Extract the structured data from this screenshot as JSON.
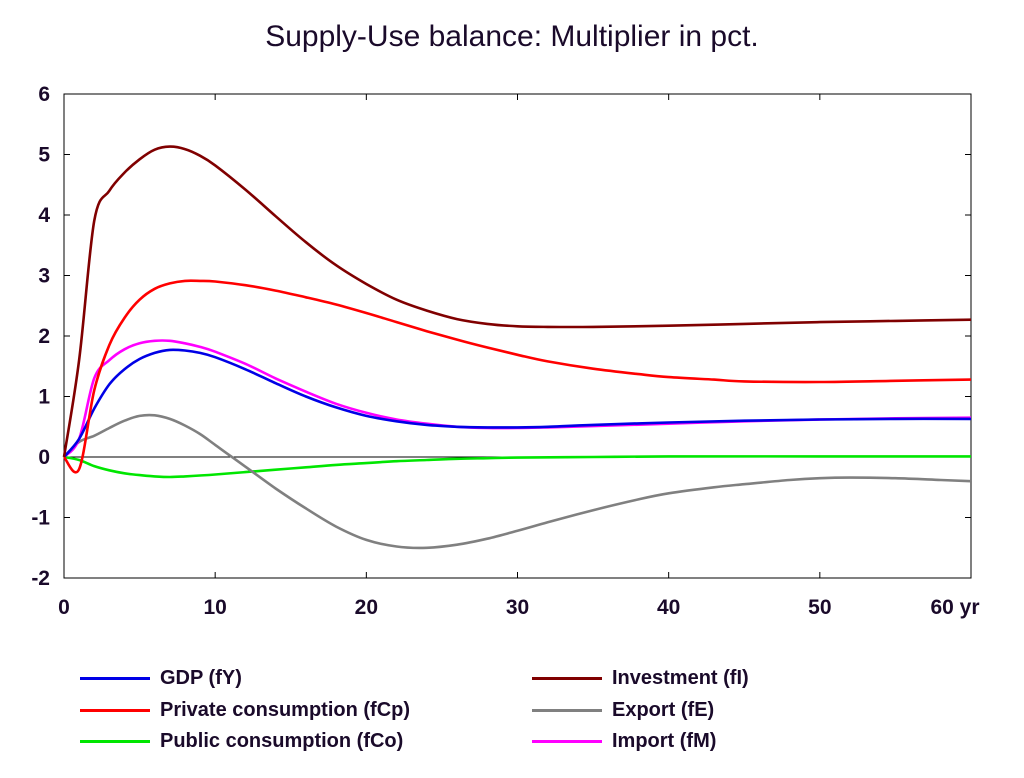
{
  "title": "Supply-Use balance: Multiplier in pct.",
  "chart_data": {
    "type": "line",
    "title": "Supply-Use balance: Multiplier in pct.",
    "xlabel": "",
    "ylabel": "",
    "xlim": [
      0,
      60
    ],
    "ylim": [
      -2,
      6
    ],
    "x_ticks": [
      "0",
      "10",
      "20",
      "30",
      "40",
      "50",
      "60 yr"
    ],
    "x_tick_values": [
      0,
      10,
      20,
      30,
      40,
      50,
      60
    ],
    "y_ticks": [
      "6",
      "5",
      "4",
      "3",
      "2",
      "1",
      "0",
      "-1",
      "-2"
    ],
    "y_tick_values": [
      6,
      5,
      4,
      3,
      2,
      1,
      0,
      -1,
      -2
    ],
    "grid": false,
    "zero_line": true,
    "legend_position": "bottom",
    "series": [
      {
        "name": "GDP (fY)",
        "color": "#0000e6",
        "x": [
          0,
          1,
          2,
          3,
          4,
          5,
          6,
          7,
          8,
          9,
          10,
          12,
          14,
          16,
          18,
          20,
          22,
          24,
          26,
          28,
          30,
          32,
          35,
          40,
          45,
          50,
          55,
          60
        ],
        "y": [
          0,
          0.3,
          0.8,
          1.2,
          1.45,
          1.62,
          1.72,
          1.77,
          1.76,
          1.72,
          1.65,
          1.45,
          1.22,
          1.0,
          0.82,
          0.68,
          0.59,
          0.53,
          0.5,
          0.49,
          0.49,
          0.5,
          0.53,
          0.57,
          0.6,
          0.62,
          0.63,
          0.63
        ]
      },
      {
        "name": "Private consumption (fCp)",
        "color": "#ff0000",
        "x": [
          0,
          1,
          2,
          3,
          4,
          5,
          6,
          7,
          8,
          9,
          10,
          12,
          14,
          16,
          18,
          20,
          22,
          24,
          26,
          28,
          30,
          32,
          35,
          38,
          40,
          43,
          45,
          50,
          55,
          60
        ],
        "y": [
          0,
          -0.2,
          1.1,
          1.85,
          2.3,
          2.6,
          2.78,
          2.87,
          2.91,
          2.91,
          2.9,
          2.84,
          2.75,
          2.64,
          2.52,
          2.38,
          2.23,
          2.08,
          1.94,
          1.81,
          1.69,
          1.58,
          1.46,
          1.37,
          1.32,
          1.28,
          1.25,
          1.24,
          1.26,
          1.28
        ]
      },
      {
        "name": "Public consumption (fCo)",
        "color": "#00e600",
        "x": [
          0,
          1,
          2,
          3,
          4,
          5,
          6,
          7,
          8,
          10,
          12,
          14,
          16,
          18,
          20,
          22,
          24,
          26,
          28,
          30,
          35,
          40,
          50,
          60
        ],
        "y": [
          0,
          -0.05,
          -0.15,
          -0.22,
          -0.27,
          -0.3,
          -0.32,
          -0.33,
          -0.32,
          -0.29,
          -0.25,
          -0.21,
          -0.17,
          -0.13,
          -0.1,
          -0.07,
          -0.05,
          -0.03,
          -0.02,
          -0.01,
          0,
          0.01,
          0.01,
          0.01
        ]
      },
      {
        "name": "Investment (fI)",
        "color": "#800000",
        "x": [
          0,
          1,
          2,
          3,
          4,
          5,
          6,
          7,
          8,
          9,
          10,
          12,
          14,
          16,
          18,
          20,
          22,
          24,
          26,
          28,
          30,
          32,
          35,
          40,
          45,
          50,
          55,
          60
        ],
        "y": [
          0,
          1.6,
          3.9,
          4.4,
          4.7,
          4.92,
          5.08,
          5.13,
          5.09,
          4.98,
          4.82,
          4.42,
          3.98,
          3.55,
          3.17,
          2.86,
          2.6,
          2.42,
          2.28,
          2.2,
          2.16,
          2.15,
          2.15,
          2.17,
          2.2,
          2.23,
          2.25,
          2.27
        ]
      },
      {
        "name": "Export (fE)",
        "color": "#808080",
        "x": [
          0,
          1,
          2,
          3,
          4,
          5,
          6,
          7,
          8,
          9,
          10,
          11,
          12,
          14,
          16,
          18,
          20,
          22,
          24,
          26,
          28,
          30,
          32,
          35,
          38,
          40,
          43,
          45,
          48,
          50,
          52,
          55,
          58,
          60
        ],
        "y": [
          0,
          0.25,
          0.35,
          0.48,
          0.6,
          0.68,
          0.69,
          0.63,
          0.52,
          0.38,
          0.2,
          0.02,
          -0.16,
          -0.52,
          -0.85,
          -1.15,
          -1.37,
          -1.48,
          -1.5,
          -1.45,
          -1.35,
          -1.22,
          -1.08,
          -0.88,
          -0.7,
          -0.6,
          -0.5,
          -0.45,
          -0.38,
          -0.35,
          -0.34,
          -0.35,
          -0.38,
          -0.4
        ]
      },
      {
        "name": "Import (fM)",
        "color": "#ff00ff",
        "x": [
          0,
          1,
          2,
          3,
          4,
          5,
          6,
          7,
          8,
          9,
          10,
          12,
          14,
          16,
          18,
          20,
          22,
          24,
          26,
          28,
          30,
          32,
          35,
          40,
          45,
          50,
          55,
          60
        ],
        "y": [
          0,
          0.3,
          1.3,
          1.6,
          1.78,
          1.88,
          1.92,
          1.92,
          1.88,
          1.82,
          1.74,
          1.54,
          1.3,
          1.08,
          0.88,
          0.73,
          0.62,
          0.55,
          0.5,
          0.48,
          0.48,
          0.49,
          0.51,
          0.55,
          0.59,
          0.62,
          0.64,
          0.65
        ]
      }
    ]
  }
}
